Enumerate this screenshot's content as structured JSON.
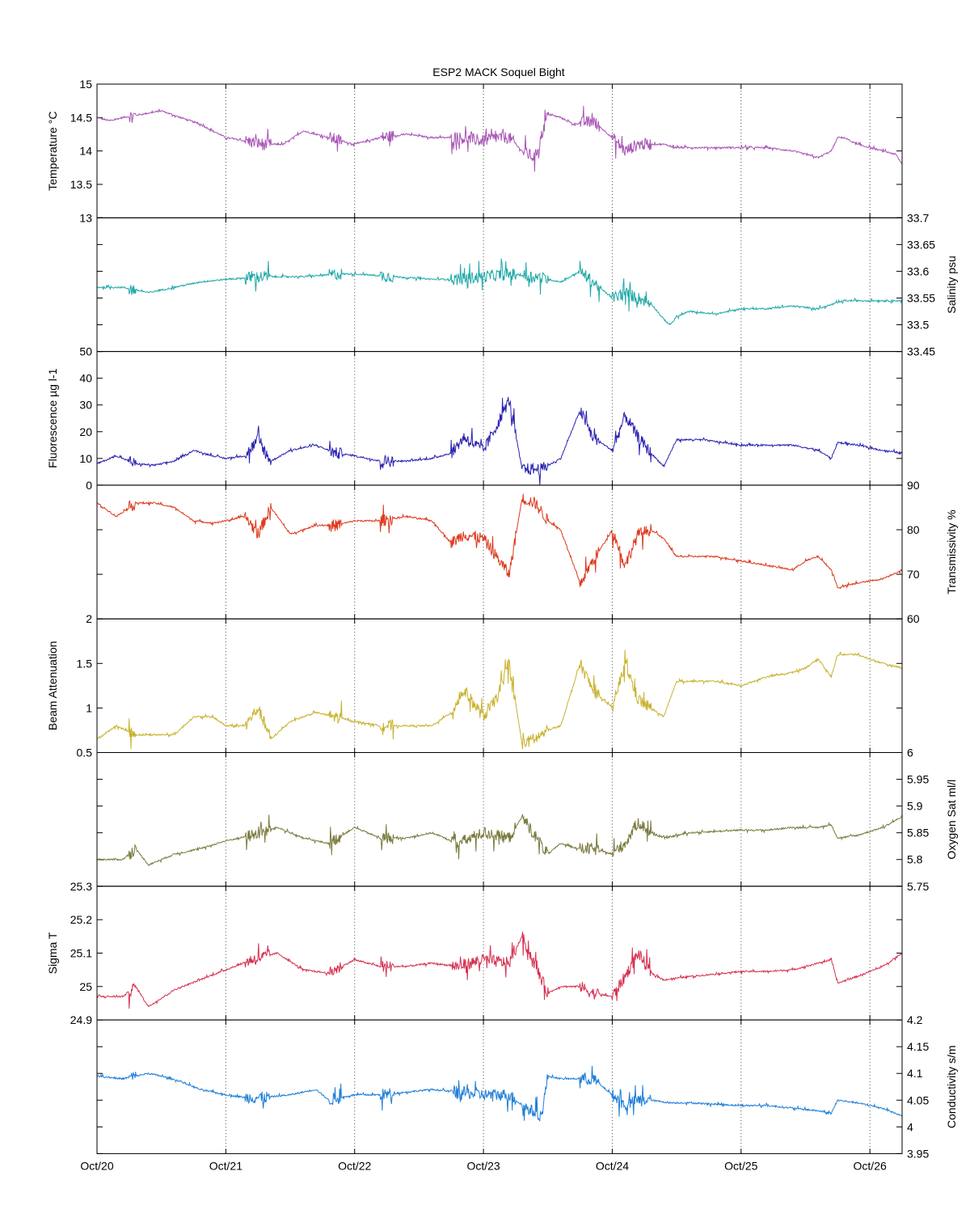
{
  "chart_data": {
    "type": "line",
    "title": "ESP2 MACK  Soquel Bight",
    "x_axis": {
      "ticks": [
        "Oct/20",
        "Oct/21",
        "Oct/22",
        "Oct/23",
        "Oct/24",
        "Oct/25",
        "Oct/26"
      ],
      "range_days": [
        0,
        6.25
      ],
      "grid": "dotted vertical at each tick"
    },
    "panels": [
      {
        "ylabel": "Temperature °C",
        "side": "left",
        "color": "#a855b5",
        "ylim": [
          13,
          15
        ],
        "ticks": [
          {
            "v": 15,
            "t": "15"
          },
          {
            "v": 14.5,
            "t": "14.5"
          },
          {
            "v": 14,
            "t": "14"
          },
          {
            "v": 13.5,
            "t": "13.5"
          },
          {
            "v": 13,
            "t": "13"
          }
        ],
        "x": [
          0,
          0.1,
          0.2,
          0.35,
          0.5,
          0.65,
          0.8,
          0.9,
          1.0,
          1.15,
          1.3,
          1.45,
          1.6,
          1.8,
          2.0,
          2.2,
          2.4,
          2.6,
          2.8,
          3.0,
          3.1,
          3.2,
          3.3,
          3.4,
          3.5,
          3.6,
          3.7,
          3.85,
          4.0,
          4.1,
          4.2,
          4.3,
          4.4,
          4.5,
          4.7,
          5.0,
          5.2,
          5.4,
          5.5,
          5.6,
          5.7,
          5.75,
          5.8,
          5.9,
          6.0,
          6.1,
          6.2,
          6.25
        ],
        "y": [
          14.5,
          14.45,
          14.5,
          14.55,
          14.6,
          14.5,
          14.4,
          14.3,
          14.2,
          14.15,
          14.1,
          14.1,
          14.3,
          14.2,
          14.1,
          14.2,
          14.25,
          14.2,
          14.2,
          14.15,
          14.2,
          14.2,
          14.0,
          13.9,
          14.55,
          14.5,
          14.4,
          14.45,
          14.2,
          14.0,
          14.1,
          14.1,
          14.1,
          14.05,
          14.05,
          14.05,
          14.05,
          14.0,
          13.95,
          13.9,
          14.0,
          14.2,
          14.2,
          14.1,
          14.05,
          14.0,
          13.95,
          13.8
        ]
      },
      {
        "ylabel": "Salinity psu",
        "side": "right",
        "color": "#22a8a8",
        "ylim": [
          33.45,
          33.7
        ],
        "ticks": [
          {
            "v": 33.7,
            "t": "33.7"
          },
          {
            "v": 33.65,
            "t": "33.65"
          },
          {
            "v": 33.6,
            "t": "33.6"
          },
          {
            "v": 33.55,
            "t": "33.55"
          },
          {
            "v": 33.5,
            "t": "33.5"
          },
          {
            "v": 33.45,
            "t": "33.45"
          }
        ],
        "x": [
          0,
          0.2,
          0.4,
          0.6,
          0.8,
          1.0,
          1.3,
          1.6,
          1.9,
          2.0,
          2.3,
          2.6,
          2.8,
          3.0,
          3.2,
          3.4,
          3.6,
          3.75,
          3.9,
          4.0,
          4.1,
          4.2,
          4.3,
          4.4,
          4.45,
          4.5,
          4.6,
          4.8,
          5.0,
          5.2,
          5.4,
          5.6,
          5.8,
          6.0,
          6.25
        ],
        "y": [
          33.57,
          33.57,
          33.56,
          33.57,
          33.58,
          33.585,
          33.59,
          33.59,
          33.595,
          33.595,
          33.59,
          33.585,
          33.585,
          33.59,
          33.595,
          33.59,
          33.58,
          33.6,
          33.57,
          33.55,
          33.56,
          33.55,
          33.54,
          33.51,
          33.5,
          33.515,
          33.525,
          33.52,
          33.53,
          33.53,
          33.535,
          33.53,
          33.545,
          33.545,
          33.545
        ]
      },
      {
        "ylabel": "Fluorescence µg l-1",
        "side": "left",
        "color": "#2a22b0",
        "ylim": [
          0,
          50
        ],
        "ticks": [
          {
            "v": 50,
            "t": "50"
          },
          {
            "v": 40,
            "t": "40"
          },
          {
            "v": 30,
            "t": "30"
          },
          {
            "v": 20,
            "t": "20"
          },
          {
            "v": 10,
            "t": "10"
          },
          {
            "v": 0,
            "t": "0"
          }
        ],
        "x": [
          0,
          0.15,
          0.3,
          0.45,
          0.6,
          0.75,
          0.9,
          1.0,
          1.15,
          1.25,
          1.35,
          1.5,
          1.7,
          1.85,
          2.0,
          2.2,
          2.4,
          2.6,
          2.75,
          2.85,
          3.0,
          3.1,
          3.2,
          3.3,
          3.45,
          3.6,
          3.75,
          3.85,
          4.0,
          4.1,
          4.2,
          4.3,
          4.4,
          4.5,
          4.7,
          5.0,
          5.2,
          5.4,
          5.6,
          5.7,
          5.75,
          5.9,
          6.1,
          6.25
        ],
        "y": [
          8,
          11,
          8,
          7.5,
          9,
          13,
          11,
          10,
          11,
          17,
          9,
          13,
          15,
          12,
          11,
          9,
          9,
          10,
          12,
          18,
          13,
          22,
          32,
          6,
          6,
          10,
          28,
          18,
          13,
          26,
          18,
          12,
          7,
          17,
          17,
          15,
          15,
          15,
          13,
          10,
          16,
          15,
          13,
          12
        ]
      },
      {
        "ylabel": "Transmissivity %",
        "side": "right",
        "color": "#dd3a1e",
        "ylim": [
          60,
          90
        ],
        "ticks": [
          {
            "v": 90,
            "t": "90"
          },
          {
            "v": 80,
            "t": "80"
          },
          {
            "v": 70,
            "t": "70"
          },
          {
            "v": 60,
            "t": "60"
          }
        ],
        "x": [
          0,
          0.15,
          0.3,
          0.45,
          0.6,
          0.75,
          0.9,
          1.0,
          1.15,
          1.25,
          1.35,
          1.5,
          1.7,
          1.85,
          2.0,
          2.2,
          2.4,
          2.6,
          2.75,
          2.85,
          3.0,
          3.1,
          3.2,
          3.3,
          3.4,
          3.5,
          3.6,
          3.75,
          3.85,
          4.0,
          4.1,
          4.2,
          4.3,
          4.4,
          4.5,
          4.8,
          5.0,
          5.2,
          5.4,
          5.5,
          5.6,
          5.7,
          5.75,
          5.9,
          6.1,
          6.25
        ],
        "y": [
          86,
          83,
          86,
          86,
          85,
          82,
          81.5,
          82,
          83,
          79,
          85,
          79,
          81,
          81,
          82,
          82,
          83,
          82,
          77,
          79,
          78,
          74,
          70,
          87,
          86,
          82,
          80,
          68,
          73,
          80,
          72,
          79,
          80,
          78,
          74,
          74,
          73,
          72,
          71,
          73,
          74,
          71,
          67,
          68,
          69,
          71
        ]
      },
      {
        "ylabel": "Beam Attenuation",
        "side": "left",
        "color": "#c8b22e",
        "ylim": [
          0.5,
          2
        ],
        "ticks": [
          {
            "v": 2,
            "t": "2"
          },
          {
            "v": 1.5,
            "t": "1.5"
          },
          {
            "v": 1,
            "t": "1"
          },
          {
            "v": 0.5,
            "t": "0.5"
          }
        ],
        "x": [
          0,
          0.15,
          0.3,
          0.45,
          0.6,
          0.75,
          0.9,
          1.0,
          1.15,
          1.25,
          1.35,
          1.5,
          1.7,
          1.85,
          2.0,
          2.2,
          2.4,
          2.6,
          2.75,
          2.85,
          3.0,
          3.1,
          3.2,
          3.3,
          3.4,
          3.5,
          3.6,
          3.75,
          3.85,
          4.0,
          4.1,
          4.2,
          4.3,
          4.4,
          4.5,
          4.8,
          5.0,
          5.2,
          5.4,
          5.5,
          5.6,
          5.7,
          5.75,
          5.9,
          6.1,
          6.25
        ],
        "y": [
          0.65,
          0.8,
          0.7,
          0.7,
          0.7,
          0.9,
          0.9,
          0.8,
          0.8,
          1.0,
          0.65,
          0.85,
          0.95,
          0.9,
          0.85,
          0.8,
          0.8,
          0.8,
          0.95,
          1.2,
          0.9,
          1.1,
          1.5,
          0.6,
          0.65,
          0.75,
          0.8,
          1.5,
          1.2,
          1.0,
          1.5,
          1.1,
          1.0,
          0.9,
          1.3,
          1.3,
          1.25,
          1.35,
          1.4,
          1.45,
          1.55,
          1.35,
          1.6,
          1.6,
          1.5,
          1.45
        ]
      },
      {
        "ylabel": "Oxygen Sat ml/l",
        "side": "right",
        "color": "#7a7a3e",
        "ylim": [
          5.75,
          6
        ],
        "ticks": [
          {
            "v": 6,
            "t": "6"
          },
          {
            "v": 5.95,
            "t": "5.95"
          },
          {
            "v": 5.9,
            "t": "5.9"
          },
          {
            "v": 5.85,
            "t": "5.85"
          },
          {
            "v": 5.8,
            "t": "5.8"
          },
          {
            "v": 5.75,
            "t": "5.75"
          }
        ],
        "x": [
          0,
          0.2,
          0.3,
          0.4,
          0.6,
          0.8,
          1.0,
          1.2,
          1.4,
          1.6,
          1.8,
          2.0,
          2.2,
          2.4,
          2.6,
          2.8,
          3.0,
          3.2,
          3.3,
          3.5,
          3.6,
          3.75,
          3.85,
          4.0,
          4.1,
          4.2,
          4.3,
          4.4,
          4.6,
          5.0,
          5.2,
          5.4,
          5.6,
          5.7,
          5.75,
          5.9,
          6.1,
          6.25
        ],
        "y": [
          5.8,
          5.8,
          5.82,
          5.79,
          5.81,
          5.82,
          5.835,
          5.845,
          5.86,
          5.84,
          5.83,
          5.86,
          5.84,
          5.84,
          5.85,
          5.83,
          5.85,
          5.84,
          5.88,
          5.81,
          5.83,
          5.82,
          5.82,
          5.81,
          5.83,
          5.87,
          5.85,
          5.84,
          5.85,
          5.855,
          5.855,
          5.86,
          5.86,
          5.865,
          5.84,
          5.845,
          5.86,
          5.88
        ]
      },
      {
        "ylabel": "Sigma T",
        "side": "left",
        "color": "#d63050",
        "ylim": [
          24.9,
          25.3
        ],
        "ticks": [
          {
            "v": 25.3,
            "t": "25.3"
          },
          {
            "v": 25.2,
            "t": "25.2"
          },
          {
            "v": 25.1,
            "t": "25.1"
          },
          {
            "v": 25,
            "t": "25"
          },
          {
            "v": 24.9,
            "t": "24.9"
          }
        ],
        "x": [
          0,
          0.2,
          0.3,
          0.4,
          0.6,
          0.8,
          1.0,
          1.2,
          1.4,
          1.6,
          1.8,
          2.0,
          2.2,
          2.4,
          2.6,
          2.8,
          3.0,
          3.2,
          3.3,
          3.5,
          3.6,
          3.75,
          3.85,
          4.0,
          4.1,
          4.2,
          4.3,
          4.4,
          4.6,
          5.0,
          5.2,
          5.4,
          5.6,
          5.7,
          5.75,
          5.9,
          6.1,
          6.25
        ],
        "y": [
          24.97,
          24.97,
          25.0,
          24.94,
          24.99,
          25.02,
          25.05,
          25.08,
          25.1,
          25.05,
          25.04,
          25.08,
          25.06,
          25.06,
          25.07,
          25.06,
          25.08,
          25.07,
          25.15,
          24.98,
          25.0,
          25.0,
          24.98,
          24.97,
          25.03,
          25.1,
          25.04,
          25.02,
          25.03,
          25.045,
          25.045,
          25.05,
          25.07,
          25.08,
          25.01,
          25.03,
          25.06,
          25.1
        ]
      },
      {
        "ylabel": "Conductivity s/m",
        "side": "right",
        "color": "#1f7fd6",
        "ylim": [
          3.95,
          4.2
        ],
        "ticks": [
          {
            "v": 4.2,
            "t": "4.2"
          },
          {
            "v": 4.15,
            "t": "4.15"
          },
          {
            "v": 4.1,
            "t": "4.1"
          },
          {
            "v": 4.05,
            "t": "4.05"
          },
          {
            "v": 4,
            "t": "4"
          },
          {
            "v": 3.95,
            "t": "3.95"
          }
        ],
        "x": [
          0,
          0.2,
          0.3,
          0.4,
          0.5,
          0.65,
          0.8,
          1.0,
          1.15,
          1.3,
          1.5,
          1.7,
          1.8,
          2.0,
          2.2,
          2.4,
          2.6,
          2.8,
          3.0,
          3.2,
          3.3,
          3.45,
          3.5,
          3.6,
          3.75,
          3.85,
          4.0,
          4.1,
          4.2,
          4.3,
          4.45,
          4.6,
          5.0,
          5.2,
          5.4,
          5.6,
          5.7,
          5.75,
          5.9,
          6.1,
          6.25
        ],
        "y": [
          4.095,
          4.09,
          4.095,
          4.1,
          4.095,
          4.085,
          4.07,
          4.06,
          4.055,
          4.055,
          4.06,
          4.07,
          4.05,
          4.06,
          4.06,
          4.065,
          4.07,
          4.065,
          4.06,
          4.06,
          4.04,
          4.02,
          4.095,
          4.09,
          4.09,
          4.09,
          4.06,
          4.04,
          4.05,
          4.05,
          4.045,
          4.045,
          4.04,
          4.04,
          4.035,
          4.03,
          4.025,
          4.05,
          4.045,
          4.035,
          4.02
        ]
      }
    ]
  }
}
